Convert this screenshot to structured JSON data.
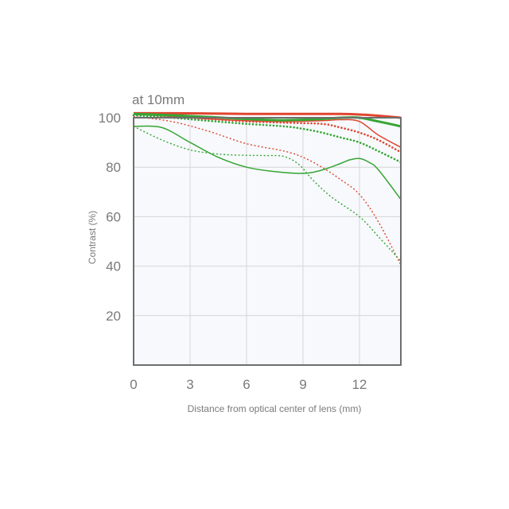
{
  "chart_data": {
    "type": "line",
    "title": "at 10mm",
    "xlabel": "Distance from optical center of lens (mm)",
    "ylabel": "Contrast (%)",
    "xlim": [
      0,
      14.2
    ],
    "ylim": [
      0,
      100
    ],
    "x_ticks": [
      0,
      3,
      6,
      9,
      12
    ],
    "y_ticks": [
      20,
      40,
      60,
      80,
      100
    ],
    "grid": true,
    "legend": "none",
    "colors": {
      "red": "#e0452f",
      "green": "#35a534",
      "frame": "#6e6e6e",
      "grid": "#d6d6d6",
      "plot_bg": "#f7f9fc"
    },
    "series": [
      {
        "color": "#e0452f",
        "style": "solid-thick",
        "points": [
          [
            0,
            101.8
          ],
          [
            2,
            101.8
          ],
          [
            4,
            101.7
          ],
          [
            6,
            101.5
          ],
          [
            8,
            101.5
          ],
          [
            10,
            101.5
          ],
          [
            11,
            101.5
          ],
          [
            12,
            101.3
          ],
          [
            13,
            100.8
          ],
          [
            14.2,
            100.0
          ]
        ]
      },
      {
        "color": "#e0452f",
        "style": "solid-thin",
        "points": [
          [
            0,
            101.5
          ],
          [
            2,
            100.5
          ],
          [
            4,
            99.5
          ],
          [
            6,
            98.8
          ],
          [
            8,
            98.5
          ],
          [
            10,
            98.8
          ],
          [
            11,
            99.2
          ],
          [
            12,
            98.5
          ],
          [
            13,
            93
          ],
          [
            14.2,
            88
          ]
        ]
      },
      {
        "color": "#35a534",
        "style": "solid-thick",
        "points": [
          [
            0,
            101.5
          ],
          [
            2,
            101.0
          ],
          [
            4,
            100.3
          ],
          [
            6,
            99.5
          ],
          [
            8,
            99.0
          ],
          [
            10,
            99.5
          ],
          [
            11,
            100.0
          ],
          [
            12,
            100.0
          ],
          [
            13,
            98.5
          ],
          [
            14.2,
            96.5
          ]
        ]
      },
      {
        "color": "#35a534",
        "style": "solid-thin",
        "points": [
          [
            0,
            96.5
          ],
          [
            1.5,
            96.0
          ],
          [
            3,
            90
          ],
          [
            4.5,
            84
          ],
          [
            6,
            80
          ],
          [
            7.5,
            78.2
          ],
          [
            9,
            77.5
          ],
          [
            10,
            78.8
          ],
          [
            11,
            81.5
          ],
          [
            11.5,
            83
          ],
          [
            12,
            83.5
          ],
          [
            12.5,
            82
          ],
          [
            13,
            79
          ],
          [
            14.2,
            67
          ]
        ]
      },
      {
        "color": "#e0452f",
        "style": "dotted-thick",
        "points": [
          [
            0,
            101.0
          ],
          [
            2,
            100.5
          ],
          [
            4,
            99.5
          ],
          [
            6,
            98.5
          ],
          [
            8,
            98.0
          ],
          [
            10,
            97.5
          ],
          [
            11,
            96.0
          ],
          [
            12,
            94
          ],
          [
            13,
            91
          ],
          [
            14.2,
            86
          ]
        ]
      },
      {
        "color": "#35a534",
        "style": "dotted-thick",
        "points": [
          [
            0,
            101.0
          ],
          [
            2,
            100.0
          ],
          [
            4,
            98.7
          ],
          [
            6,
            97.5
          ],
          [
            8,
            96.5
          ],
          [
            9,
            95.5
          ],
          [
            10,
            94.0
          ],
          [
            11,
            92.0
          ],
          [
            12,
            90.0
          ],
          [
            13,
            86.5
          ],
          [
            14.2,
            82
          ]
        ]
      },
      {
        "color": "#e0452f",
        "style": "dotted-thin",
        "points": [
          [
            0,
            100.5
          ],
          [
            2,
            98.5
          ],
          [
            4,
            94.5
          ],
          [
            6,
            89.5
          ],
          [
            8,
            86.5
          ],
          [
            9,
            84
          ],
          [
            10,
            80
          ],
          [
            11,
            75
          ],
          [
            12,
            69
          ],
          [
            13,
            58
          ],
          [
            14.2,
            40.5
          ]
        ]
      },
      {
        "color": "#35a534",
        "style": "dotted-thin",
        "points": [
          [
            0,
            96.5
          ],
          [
            1.5,
            91
          ],
          [
            3,
            87
          ],
          [
            4.5,
            85.3
          ],
          [
            6,
            84.8
          ],
          [
            7,
            84.7
          ],
          [
            8,
            84.3
          ],
          [
            8.8,
            81
          ],
          [
            9.5,
            75
          ],
          [
            10.5,
            68
          ],
          [
            12,
            60
          ],
          [
            13,
            52
          ],
          [
            14.2,
            42
          ]
        ]
      }
    ]
  }
}
